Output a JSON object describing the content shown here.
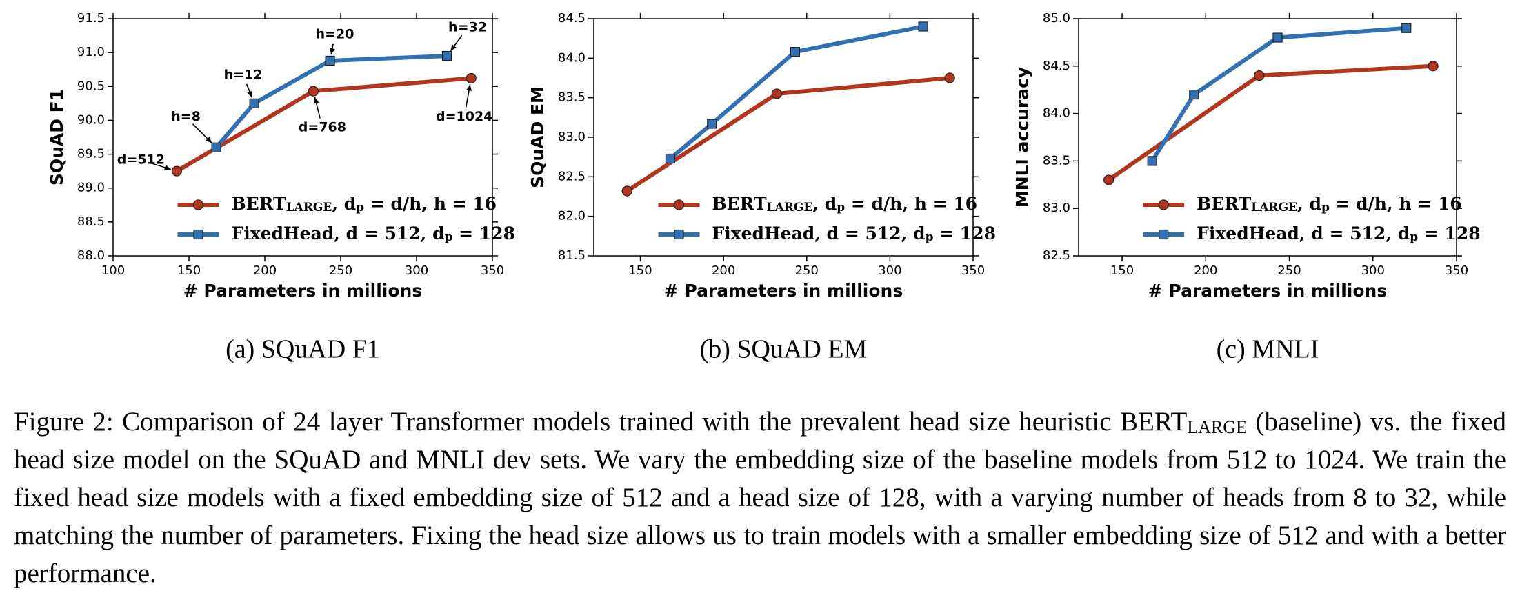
{
  "chart_data": [
    {
      "type": "line",
      "caption": "(a) SQuAD F1",
      "xlabel": "# Parameters in millions",
      "ylabel": "SQuAD F1",
      "xlim": [
        100,
        350
      ],
      "xticks": [
        100,
        150,
        200,
        250,
        300,
        350
      ],
      "ylim": [
        88,
        91.5
      ],
      "yticks": [
        {
          "value": 88,
          "label": "88.0"
        },
        88.5,
        {
          "value": 89,
          "label": "89.0"
        },
        89.5,
        {
          "value": 90,
          "label": "90.0"
        },
        90.5,
        {
          "value": 91,
          "label": "91.0"
        },
        91.5
      ],
      "legend": "lower right",
      "series": [
        {
          "name": [
            "BERT",
            "LARGE",
            ", d",
            "p",
            " = d/h, h = 16"
          ],
          "color": "#b0361e",
          "marker": "circle",
          "x": [
            142,
            232,
            336
          ],
          "values": [
            89.25,
            90.43,
            90.62
          ]
        },
        {
          "name": [
            "FixedHead, d = 512, d",
            "p",
            " = 128"
          ],
          "color": "#3070b3",
          "marker": "square",
          "x": [
            168,
            193,
            243,
            320
          ],
          "values": [
            89.6,
            90.25,
            90.88,
            90.95
          ]
        }
      ],
      "annotations": [
        {
          "text": "d=512",
          "x": 142,
          "y": 89.25
        },
        {
          "text": "h=8",
          "x": 168,
          "y": 89.6
        },
        {
          "text": "h=12",
          "x": 193,
          "y": 90.25
        },
        {
          "text": "h=20",
          "x": 243,
          "y": 90.88
        },
        {
          "text": "h=32",
          "x": 320,
          "y": 90.95
        },
        {
          "text": "d=768",
          "x": 232,
          "y": 90.43
        },
        {
          "text": "d=1024",
          "x": 336,
          "y": 90.62
        }
      ]
    },
    {
      "type": "line",
      "caption": "(b) SQuAD EM",
      "xlabel": "# Parameters in millions",
      "ylabel": "SQuAD EM",
      "xlim": [
        122,
        350
      ],
      "xticks": [
        150,
        200,
        250,
        300,
        350
      ],
      "ylim": [
        81.5,
        84.5
      ],
      "yticks": [
        81.5,
        {
          "value": 82,
          "label": "82.0"
        },
        82.5,
        {
          "value": 83,
          "label": "83.0"
        },
        83.5,
        {
          "value": 84,
          "label": "84.0"
        },
        84.5
      ],
      "legend": "lower right",
      "series": [
        {
          "name": [
            "BERT",
            "LARGE",
            ", d",
            "p",
            " = d/h, h = 16"
          ],
          "color": "#b0361e",
          "marker": "circle",
          "x": [
            142,
            232,
            336
          ],
          "values": [
            82.32,
            83.55,
            83.75
          ]
        },
        {
          "name": [
            "FixedHead, d = 512, d",
            "p",
            " = 128"
          ],
          "color": "#3070b3",
          "marker": "square",
          "x": [
            168,
            193,
            243,
            320
          ],
          "values": [
            82.73,
            83.17,
            84.08,
            84.4
          ]
        }
      ]
    },
    {
      "type": "line",
      "caption": "(c) MNLI",
      "xlabel": "# Parameters in millions",
      "ylabel": "MNLI accuracy",
      "xlim": [
        124,
        350
      ],
      "xticks": [
        150,
        200,
        250,
        300,
        350
      ],
      "ylim": [
        82.5,
        85
      ],
      "yticks": [
        82.5,
        {
          "value": 83,
          "label": "83.0"
        },
        83.5,
        {
          "value": 84,
          "label": "84.0"
        },
        84.5,
        {
          "value": 85,
          "label": "85.0"
        }
      ],
      "legend": "lower right",
      "series": [
        {
          "name": [
            "BERT",
            "LARGE",
            ", d",
            "p",
            " = d/h, h = 16"
          ],
          "color": "#b0361e",
          "marker": "circle",
          "x": [
            142,
            232,
            336
          ],
          "values": [
            83.3,
            84.4,
            84.5
          ]
        },
        {
          "name": [
            "FixedHead, d = 512, d",
            "p",
            " = 128"
          ],
          "color": "#3070b3",
          "marker": "square",
          "x": [
            168,
            193,
            243,
            320
          ],
          "values": [
            83.5,
            84.2,
            84.8,
            84.9
          ]
        }
      ]
    }
  ],
  "figure_caption": [
    "Figure 2: Comparison of 24 layer Transformer models trained with the prevalent head size heuristic BERT",
    "LARGE",
    " (baseline) vs. the fixed head size model on the SQuAD and MNLI dev sets. We vary the embedding size of the baseline models from 512 to 1024. We train the fixed head size models with a fixed embedding size of 512 and a head size of 128, with a varying number of heads from 8 to 32, while matching the number of parameters. Fixing the head size allows us to train models with a smaller embedding size of 512 and with a better performance."
  ]
}
